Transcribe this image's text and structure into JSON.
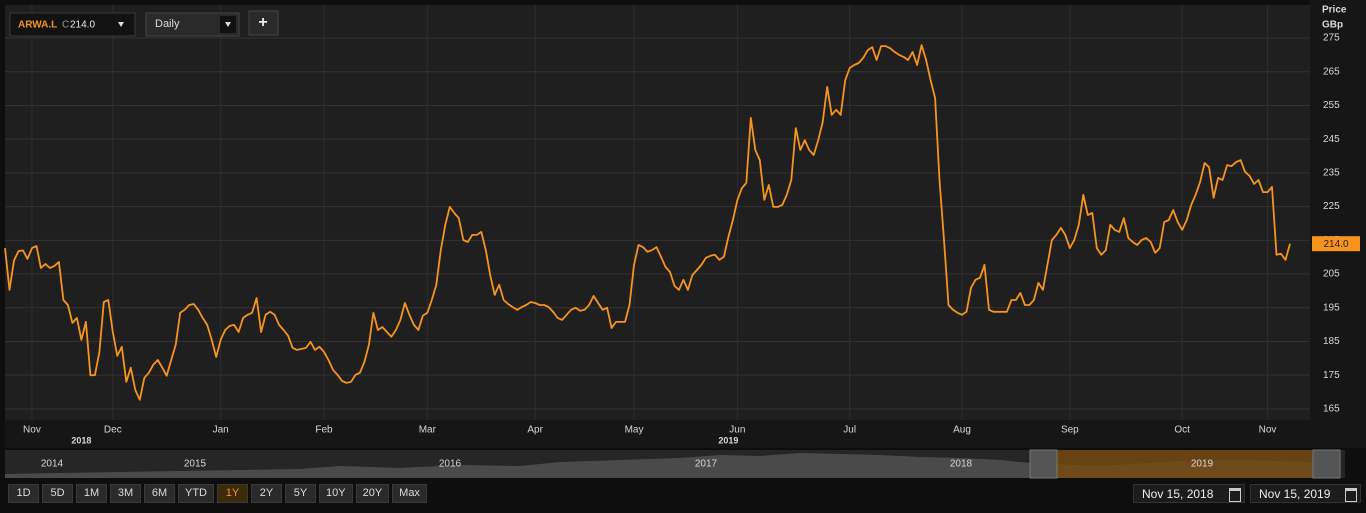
{
  "header": {
    "symbol": "ARWA.L",
    "close_prefix": "C",
    "close": "214.0",
    "interval": "Daily",
    "add_button": "+"
  },
  "chart_data": {
    "type": "line",
    "y_axis_title": "Price",
    "y_axis_unit": "GBp",
    "color": "#f7941d",
    "grid": true,
    "categories": [
      null,
      null,
      null,
      null,
      null,
      null,
      "Nov",
      null,
      null,
      null,
      null,
      null,
      null,
      null,
      null,
      null,
      null,
      null,
      null,
      null,
      null,
      null,
      null,
      null,
      "Dec",
      null,
      null,
      null,
      null,
      null,
      null,
      null,
      null,
      null,
      null,
      null,
      null,
      null,
      null,
      null,
      null,
      null,
      null,
      null,
      null,
      null,
      null,
      null,
      "Jan",
      null,
      null,
      null,
      null,
      null,
      null,
      null,
      null,
      null,
      null,
      null,
      null,
      null,
      null,
      null,
      null,
      null,
      null,
      null,
      null,
      null,
      null,
      "Feb",
      null,
      null,
      null,
      null,
      null,
      null,
      null,
      null,
      null,
      null,
      null,
      null,
      null,
      null,
      null,
      null,
      null,
      null,
      null,
      null,
      null,
      null,
      "Mar",
      null,
      null,
      null,
      null,
      null,
      null,
      null,
      null,
      null,
      null,
      null,
      null,
      null,
      null,
      null,
      null,
      null,
      null,
      null,
      null,
      null,
      null,
      null,
      "Apr",
      null,
      null,
      null,
      null,
      null,
      null,
      null,
      null,
      null,
      null,
      null,
      null,
      null,
      null,
      null,
      null,
      null,
      null,
      null,
      null,
      null,
      "May",
      null,
      null,
      null,
      null,
      null,
      null,
      null,
      null,
      null,
      null,
      null,
      null,
      null,
      null,
      null,
      null,
      null,
      null,
      null,
      null,
      null,
      null,
      "Jun",
      null,
      null,
      null,
      null,
      null,
      null,
      null,
      null,
      null,
      null,
      null,
      null,
      null,
      null,
      null,
      null,
      null,
      null,
      null,
      null,
      null,
      null,
      null,
      null,
      "Jul",
      null,
      null,
      null,
      null,
      null,
      null,
      null,
      null,
      null,
      null,
      null,
      null,
      null,
      null,
      null,
      null,
      null,
      null,
      null,
      null,
      null,
      null,
      null,
      null,
      "Aug",
      null,
      null,
      null,
      null,
      null,
      null,
      null,
      null,
      null,
      null,
      null,
      null,
      null,
      null,
      null,
      null,
      null,
      null,
      null,
      null,
      null,
      null,
      null,
      "Sep",
      null,
      null,
      null,
      null,
      null,
      null,
      null,
      null,
      null,
      null,
      null,
      null,
      null,
      null,
      null,
      null,
      null,
      null,
      null,
      null,
      null,
      null,
      null,
      null,
      "Oct",
      null,
      null,
      null,
      null,
      null,
      null,
      null,
      null,
      null,
      null,
      null,
      null,
      null,
      null,
      null,
      null,
      null,
      null,
      "Nov",
      null,
      null,
      null,
      null,
      null
    ],
    "category_years": [
      null,
      null,
      null,
      null,
      null,
      null,
      null,
      null,
      null,
      null,
      null,
      null,
      null,
      null,
      null,
      null,
      null,
      "2018",
      null,
      null,
      null,
      null,
      null,
      null,
      null,
      null,
      null,
      null,
      null,
      null,
      null,
      null,
      null,
      null,
      null,
      null,
      null,
      null,
      null,
      null,
      null,
      null,
      null,
      null,
      null,
      null,
      null,
      null,
      null,
      null,
      null,
      null,
      null,
      null,
      null,
      null,
      null,
      null,
      null,
      null,
      null,
      null,
      null,
      null,
      null,
      null,
      null,
      null,
      null,
      null,
      null,
      null,
      null,
      null,
      null,
      null,
      null,
      null,
      null,
      null,
      null,
      null,
      null,
      null,
      null,
      null,
      null,
      null,
      null,
      null,
      null,
      null,
      null,
      null,
      null,
      null,
      null,
      null,
      null,
      null,
      null,
      null,
      null,
      null,
      null,
      null,
      null,
      null,
      null,
      null,
      null,
      null,
      null,
      null,
      null,
      null,
      null,
      null,
      null,
      null,
      null,
      null,
      null,
      null,
      null,
      null,
      null,
      null,
      null,
      null,
      null,
      null,
      null,
      null,
      null,
      null,
      null,
      null,
      null,
      null,
      null,
      null,
      null,
      null,
      null,
      null,
      null,
      null,
      null,
      null,
      null,
      null,
      null,
      null,
      null,
      null,
      null,
      null,
      null,
      null,
      null,
      "2019",
      null,
      null,
      null,
      null,
      null,
      null,
      null,
      null,
      null,
      null,
      null,
      null,
      null,
      null,
      null,
      null,
      null,
      null,
      null,
      null,
      null,
      null,
      null,
      null,
      null,
      null,
      null,
      null,
      null,
      null,
      null,
      null,
      null,
      null,
      null,
      null,
      null,
      null,
      null,
      null,
      null,
      null,
      null,
      null,
      null,
      null,
      null,
      null,
      null,
      null,
      null,
      null,
      null,
      null,
      null,
      null,
      null,
      null,
      null,
      null,
      null,
      null,
      null,
      null,
      null,
      null,
      null,
      null,
      null,
      null,
      null,
      null,
      null,
      null,
      null,
      null,
      null,
      null,
      null,
      null,
      null,
      null,
      null,
      null,
      null,
      null,
      null,
      null,
      null,
      null,
      null,
      null,
      null,
      null,
      null,
      null,
      null,
      null,
      null,
      null,
      null,
      null,
      null,
      null,
      null,
      null,
      null,
      null,
      null,
      null,
      null,
      null,
      null,
      null,
      null,
      null,
      null,
      null,
      null,
      null,
      null,
      null,
      null,
      null,
      null
    ],
    "values": [
      212.7,
      200.3,
      209,
      211.8,
      212,
      209.5,
      212.7,
      213.3,
      206.8,
      208,
      206.8,
      207.4,
      208.6,
      197.3,
      195.8,
      190.5,
      192,
      185.5,
      190.8,
      175,
      175,
      181.9,
      196.7,
      197.3,
      187.8,
      180.7,
      183.4,
      173,
      177.2,
      170.6,
      167.7,
      174.2,
      175.7,
      178.1,
      179.5,
      177.2,
      174.8,
      179.5,
      184,
      193.5,
      194.4,
      195.8,
      196.1,
      194.4,
      192,
      189.9,
      185.5,
      180.4,
      185.5,
      188.4,
      189.6,
      189.9,
      187.8,
      192,
      192.9,
      193.5,
      197.9,
      187.8,
      192.9,
      193.8,
      192.9,
      189.9,
      188.4,
      186.7,
      183.1,
      182.5,
      182.8,
      183.1,
      184.9,
      182.5,
      183.4,
      181.9,
      179.5,
      176.6,
      175.1,
      173.3,
      172.7,
      173,
      175.1,
      175.7,
      178.9,
      184,
      193.5,
      188.4,
      189.3,
      187.8,
      186.4,
      188.4,
      191.4,
      196.4,
      192.9,
      189.9,
      188.4,
      192.6,
      193.5,
      197.3,
      201.8,
      212.1,
      219.6,
      224.9,
      223.1,
      221.6,
      215.1,
      214.5,
      216.6,
      216.6,
      217.5,
      212.1,
      204.7,
      198.8,
      201.8,
      197.3,
      196.1,
      195.2,
      194.4,
      195.2,
      195.8,
      196.7,
      196.4,
      195.8,
      195.8,
      195.2,
      193.8,
      192,
      191.4,
      192.9,
      194.4,
      195,
      194.1,
      194.4,
      195.8,
      198.5,
      196.4,
      194.4,
      195,
      189,
      190.8,
      190.8,
      190.8,
      195.8,
      207.7,
      213.6,
      213,
      211.6,
      212.1,
      213,
      210.1,
      207.1,
      205.6,
      201.5,
      200.3,
      203.3,
      200.3,
      204.7,
      206.2,
      207.7,
      209.8,
      210.4,
      210.7,
      209.2,
      210.1,
      216,
      221,
      227,
      230.5,
      232,
      251.3,
      241.8,
      238.8,
      227,
      231.4,
      224.9,
      224.9,
      225.5,
      228.5,
      232.9,
      248.3,
      241.8,
      244.7,
      241.8,
      240.3,
      244.7,
      250.1,
      260.5,
      252.2,
      253.7,
      252.2,
      262.5,
      266.1,
      267,
      267.6,
      269.1,
      271.4,
      272.3,
      268.5,
      272.6,
      272.6,
      272,
      270.9,
      270,
      269.4,
      268.5,
      270.9,
      267,
      272.9,
      268.5,
      262.5,
      257.2,
      232.9,
      215.1,
      195.8,
      194.4,
      193.5,
      192.9,
      193.8,
      200.9,
      203.3,
      203.9,
      207.7,
      194.4,
      193.8,
      193.8,
      193.8,
      193.8,
      197.3,
      197.3,
      199.4,
      195.8,
      195.8,
      197.3,
      202.4,
      200.3,
      207.7,
      215.1,
      216.6,
      218.7,
      216.6,
      212.7,
      215.1,
      219.6,
      228.5,
      222.5,
      223.1,
      212.7,
      210.7,
      212.1,
      219.6,
      218.1,
      217.5,
      221.6,
      215.7,
      214.5,
      213.6,
      215.1,
      215.7,
      214.5,
      211.3,
      212.7,
      220.4,
      221,
      224,
      220.4,
      218.1,
      221,
      225.5,
      228.5,
      232.3,
      237.9,
      236.7,
      227.6,
      233.5,
      232.9,
      237.3,
      237,
      238.2,
      238.8,
      235.3,
      234.1,
      231.7,
      232.9,
      229.3,
      229.3,
      230.8,
      210.7,
      211,
      209.2,
      214
    ],
    "ylim": [
      161.7,
      284.8
    ],
    "yticks": [
      165,
      175,
      185,
      195,
      205,
      215,
      225,
      235,
      245,
      255,
      265,
      275
    ],
    "last_value": {
      "value": 214.0,
      "label": "214.0"
    }
  },
  "navigator": {
    "years": [
      "2014",
      "2015",
      "2016",
      "2017",
      "2018",
      "2019"
    ]
  },
  "range_buttons": [
    "1D",
    "5D",
    "1M",
    "3M",
    "6M",
    "YTD",
    "1Y",
    "2Y",
    "5Y",
    "10Y",
    "20Y",
    "Max"
  ],
  "active_range": "1Y",
  "date_from": "Nov 15, 2018",
  "date_to": "Nov 15, 2019"
}
